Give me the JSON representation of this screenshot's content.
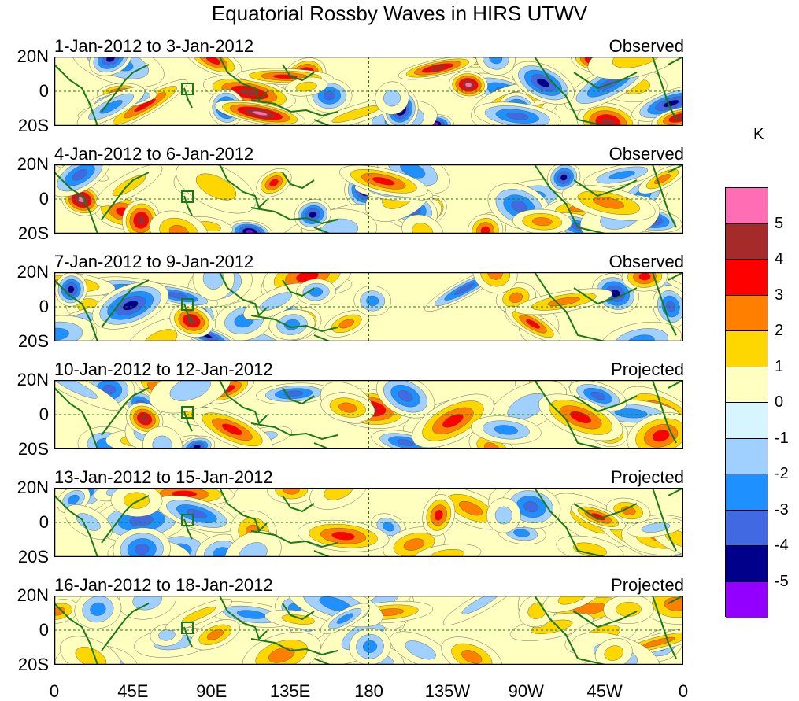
{
  "title": "Equatorial Rossby Waves in HIRS UTWV",
  "panels": [
    {
      "date_range": "1-Jan-2012 to 3-Jan-2012",
      "type": "Observed"
    },
    {
      "date_range": "4-Jan-2012 to 6-Jan-2012",
      "type": "Observed"
    },
    {
      "date_range": "7-Jan-2012 to 9-Jan-2012",
      "type": "Observed"
    },
    {
      "date_range": "10-Jan-2012 to 12-Jan-2012",
      "type": "Projected"
    },
    {
      "date_range": "13-Jan-2012 to 15-Jan-2012",
      "type": "Projected"
    },
    {
      "date_range": "16-Jan-2012 to 18-Jan-2012",
      "type": "Projected"
    }
  ],
  "lat_labels": [
    "20N",
    "0",
    "20S"
  ],
  "lon_labels": [
    "0",
    "45E",
    "90E",
    "135E",
    "180",
    "135W",
    "90W",
    "45W",
    "0"
  ],
  "colorbar": {
    "unit": "K",
    "levels": [
      "5",
      "4",
      "3",
      "2",
      "1",
      "0",
      "-1",
      "-2",
      "-3",
      "-4",
      "-5"
    ],
    "colors": [
      "#ff6eb4",
      "#a52a2a",
      "#ff0000",
      "#ff7f00",
      "#ffd700",
      "#ffffc0",
      "#d6f5ff",
      "#a0d0ff",
      "#1e90ff",
      "#4169e1",
      "#00008b",
      "#9400ff"
    ]
  },
  "chart_data": {
    "type": "heatmap",
    "title": "Equatorial Rossby Waves in HIRS UTWV",
    "x_range": [
      "0",
      "0"
    ],
    "y_range": [
      "20S",
      "20N"
    ],
    "unit": "K",
    "contour_levels": [
      -5,
      -4,
      -3,
      -2,
      -1,
      0,
      1,
      2,
      3,
      4,
      5
    ]
  }
}
